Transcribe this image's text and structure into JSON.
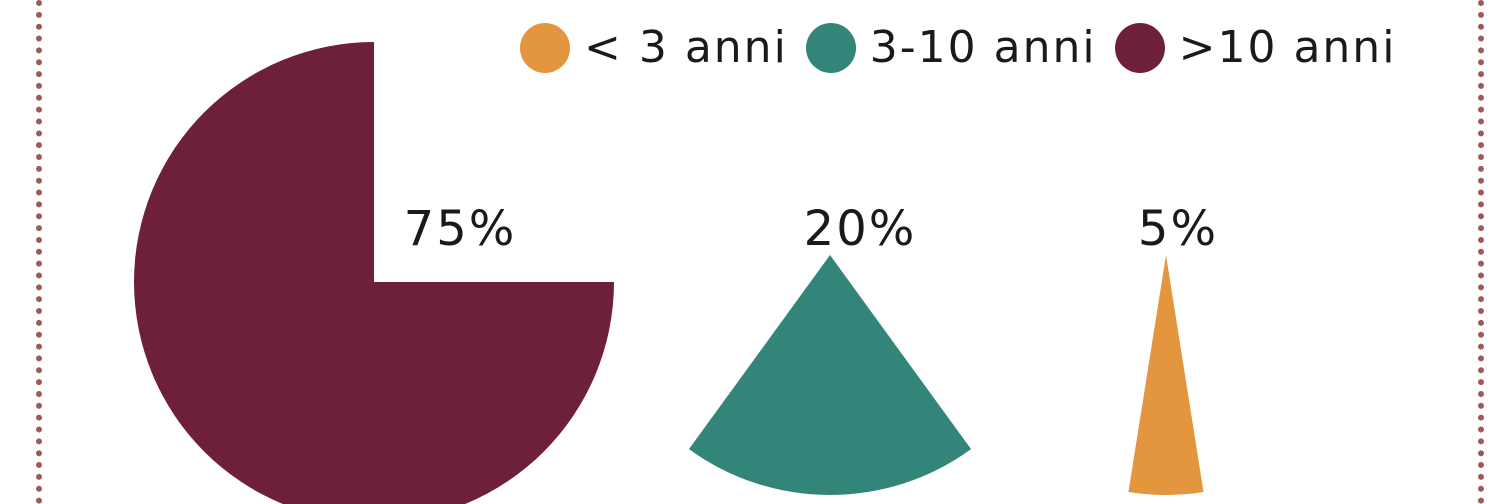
{
  "chart_data": {
    "type": "pie",
    "title": "",
    "legend_position": "top-right",
    "series": [
      {
        "name": "< 3 anni",
        "value": 5,
        "label": "5%",
        "color": "#e3963e"
      },
      {
        "name": "3-10 anni",
        "value": 20,
        "label": "20%",
        "color": "#33857a"
      },
      {
        "name": ">10 anni",
        "value": 75,
        "label": "75%",
        "color": "#6e2038"
      }
    ],
    "frame_color": "#9e5a5a"
  }
}
